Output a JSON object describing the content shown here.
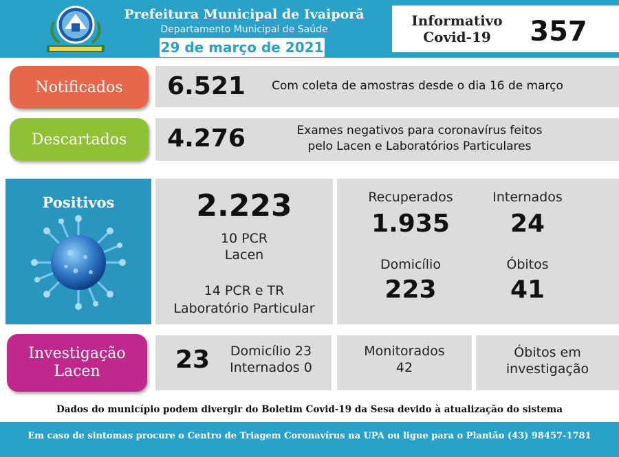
{
  "header": {
    "title": "Prefeitura Municipal de Ivaiporã",
    "subtitle": "Departamento Municipal de Saúde",
    "date": "29 de março de 2021",
    "info_line1": "Informativo",
    "info_line2": "Covid-19",
    "edition": "357",
    "logo_icon": "municipal-coat-of-arms"
  },
  "notificados": {
    "label": "Notificados",
    "value": "6.521",
    "description": "Com coleta de amostras desde o dia 16 de março",
    "color": "#e46849"
  },
  "descartados": {
    "label": "Descartados",
    "value": "4.276",
    "description_line1": "Exames negativos para coronavírus feitos",
    "description_line2": "pelo Lacen e Laboratórios Particulares",
    "color": "#8fc036"
  },
  "positivos": {
    "label": "Positivos",
    "icon": "coronavirus-icon",
    "value": "2.223",
    "pcr_line": "10 PCR",
    "lacen_line": "Lacen",
    "tr_line": "14 PCR e TR",
    "lab_line": "Laboratório Particular",
    "recuperados_label": "Recuperados",
    "recuperados_value": "1.935",
    "internados_label": "Internados",
    "internados_value": "24",
    "domicilio_label": "Domicílio",
    "domicilio_value": "223",
    "obitos_label": "Óbitos",
    "obitos_value": "41",
    "color": "#2a95bd"
  },
  "investigacao": {
    "label_line1": "Investigação",
    "label_line2": "Lacen",
    "value": "23",
    "domicilio": "Domicílio 23",
    "internados": "Internados 0",
    "monitorados_label": "Monitorados",
    "monitorados_value": "42",
    "obitos_line1": "Óbitos em",
    "obitos_line2": "investigação",
    "color": "#c0288d"
  },
  "disclaimer": "Dados do município podem divergir do Boletim Covid-19 da Sesa devido à atualização do sistema",
  "footer": "Em caso de sintomas procure o Centro de Triagem Coronavírus na UPA ou ligue para o Plantão (43) 98457-1781"
}
